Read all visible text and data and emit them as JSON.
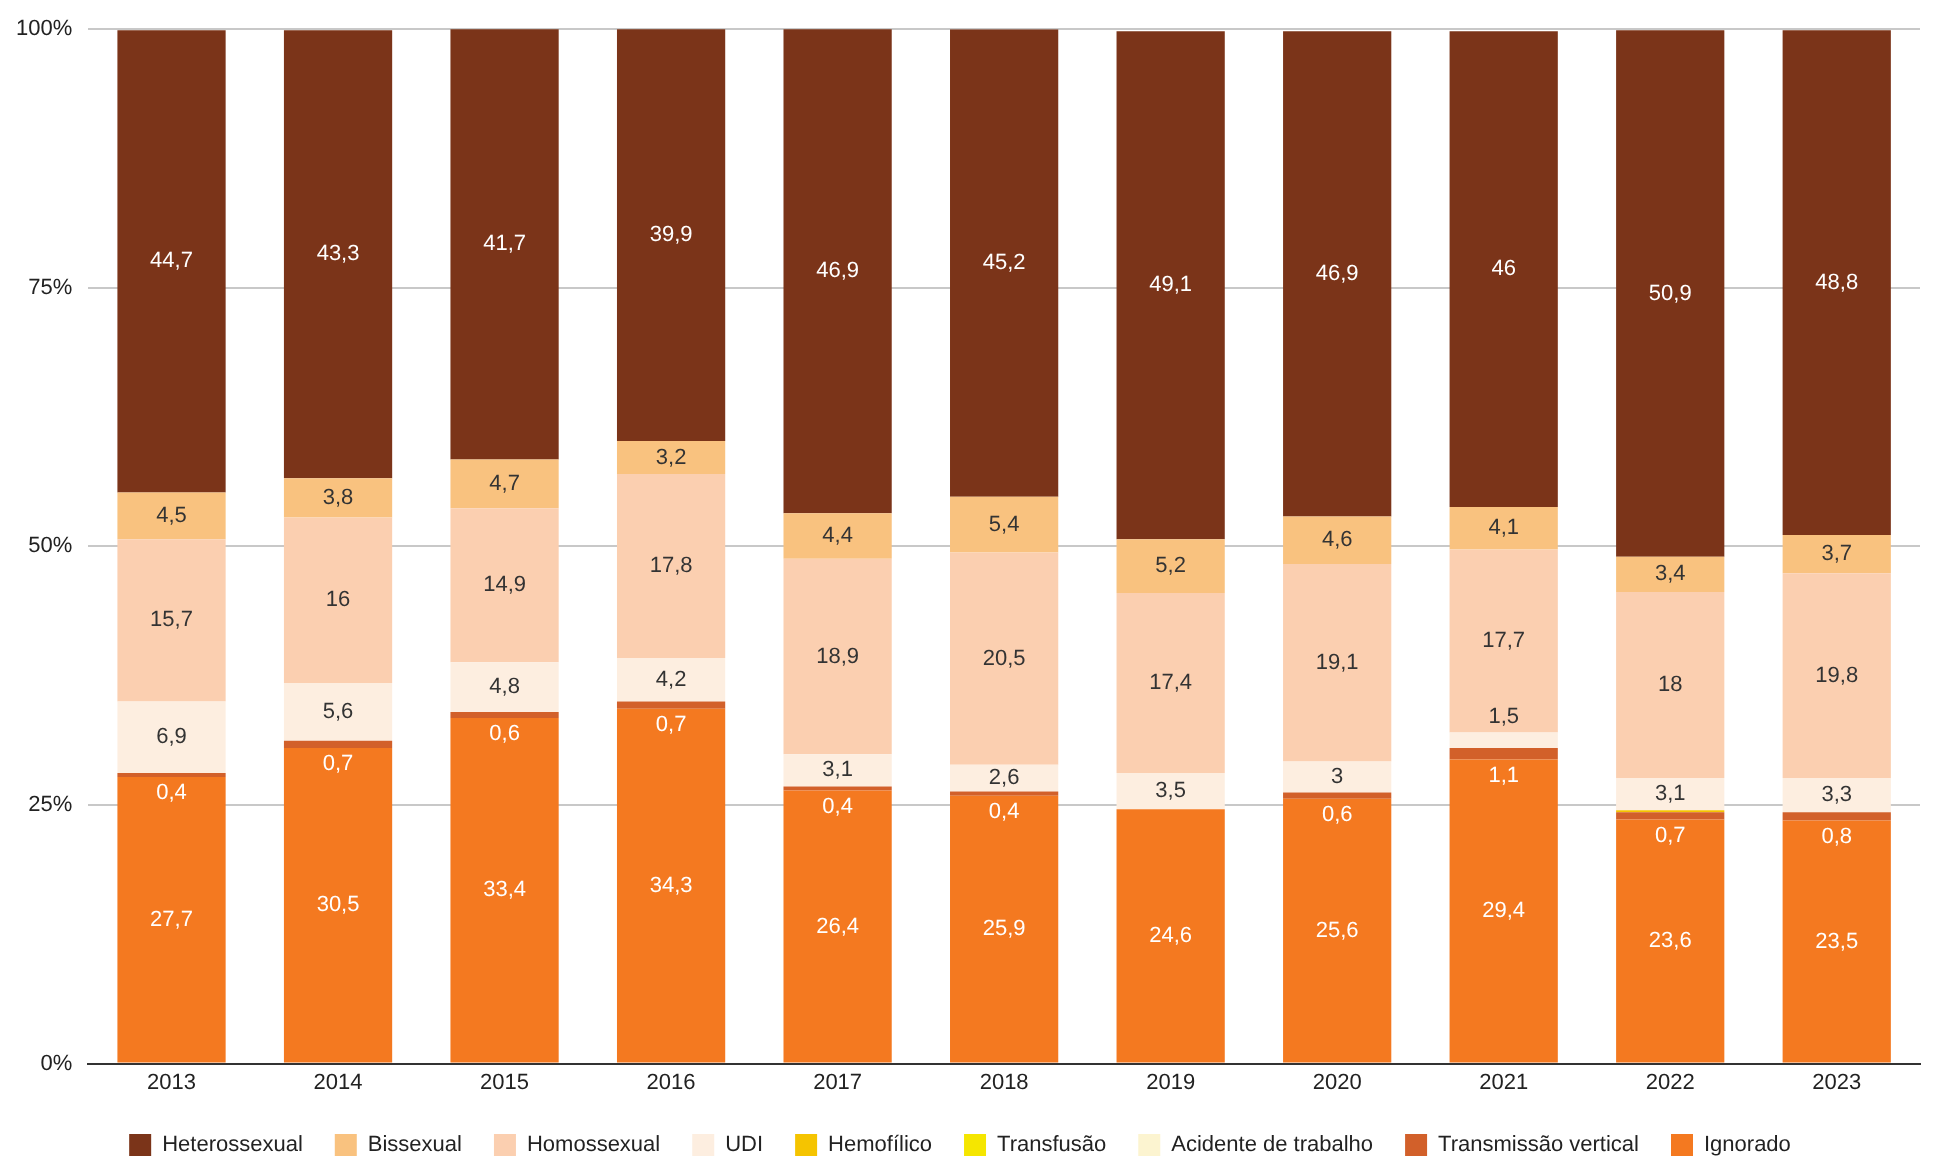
{
  "chart_data": {
    "type": "bar",
    "stacked": true,
    "categories": [
      "2013",
      "2014",
      "2015",
      "2016",
      "2017",
      "2018",
      "2019",
      "2020",
      "2021",
      "2022",
      "2023"
    ],
    "ylim": [
      0,
      100
    ],
    "yticks": [
      {
        "value": 0,
        "label": "0%"
      },
      {
        "value": 25,
        "label": "25%"
      },
      {
        "value": 50,
        "label": "50%"
      },
      {
        "value": 75,
        "label": "75%"
      },
      {
        "value": 100,
        "label": "100%"
      }
    ],
    "grid": "y",
    "legend": "bottom",
    "series": [
      {
        "name": "Ignorado",
        "color": "#f47920",
        "values": [
          27.7,
          30.5,
          33.4,
          34.3,
          26.4,
          25.9,
          24.6,
          25.6,
          29.4,
          23.6,
          23.5
        ],
        "value_labels": [
          "27,7",
          "30,5",
          "33,4",
          "34,3",
          "26,4",
          "25,9",
          "24,6",
          "25,6",
          "29,4",
          "23,6",
          "23,5"
        ]
      },
      {
        "name": "Transmissão vertical",
        "color": "#d2602a",
        "values": [
          0.4,
          0.7,
          0.6,
          0.7,
          0.4,
          0.4,
          null,
          0.6,
          1.1,
          0.7,
          0.8
        ],
        "value_labels": [
          "0,4",
          "0,7",
          "0,6",
          "0,7",
          "0,4",
          "0,4",
          null,
          "0,6",
          "1,1",
          "0,7",
          "0,8"
        ]
      },
      {
        "name": "Acidente de trabalho",
        "color": "#fcf4d0",
        "values": [
          null,
          null,
          null,
          null,
          null,
          null,
          null,
          null,
          null,
          null,
          null
        ]
      },
      {
        "name": "Transfusão",
        "color": "#f5e600",
        "values": [
          null,
          null,
          null,
          null,
          null,
          null,
          null,
          null,
          null,
          null,
          null
        ]
      },
      {
        "name": "Hemofílico",
        "color": "#f5c400",
        "values": [
          null,
          null,
          null,
          null,
          null,
          null,
          null,
          null,
          null,
          0.2,
          null
        ],
        "value_labels": [
          null,
          null,
          null,
          null,
          null,
          null,
          null,
          null,
          null,
          null,
          null
        ]
      },
      {
        "name": "UDI",
        "color": "#fdeee0",
        "values": [
          6.9,
          5.6,
          4.8,
          4.2,
          3.1,
          2.6,
          3.5,
          3,
          1.5,
          3.1,
          3.3
        ],
        "value_labels": [
          "6,9",
          "5,6",
          "4,8",
          "4,2",
          "3,1",
          "2,6",
          "3,5",
          "3",
          "1,5",
          "3,1",
          "3,3"
        ]
      },
      {
        "name": "Homossexual",
        "color": "#fbcfb0",
        "values": [
          15.7,
          16,
          14.9,
          17.8,
          18.9,
          20.5,
          17.4,
          19.1,
          17.7,
          18,
          19.8
        ],
        "value_labels": [
          "15,7",
          "16",
          "14,9",
          "17,8",
          "18,9",
          "20,5",
          "17,4",
          "19,1",
          "17,7",
          "18",
          "19,8"
        ]
      },
      {
        "name": "Bissexual",
        "color": "#f9c27f",
        "values": [
          4.5,
          3.8,
          4.7,
          3.2,
          4.4,
          5.4,
          5.2,
          4.6,
          4.1,
          3.4,
          3.7
        ],
        "value_labels": [
          "4,5",
          "3,8",
          "4,7",
          "3,2",
          "4,4",
          "5,4",
          "5,2",
          "4,6",
          "4,1",
          "3,4",
          "3,7"
        ]
      },
      {
        "name": "Heterossexual",
        "color": "#7b3419",
        "values": [
          44.7,
          43.3,
          41.7,
          39.9,
          46.9,
          45.2,
          49.1,
          46.9,
          46,
          50.9,
          48.8
        ],
        "value_labels": [
          "44,7",
          "43,3",
          "41,7",
          "39,9",
          "46,9",
          "45,2",
          "49,1",
          "46,9",
          "46",
          "50,9",
          "48,8"
        ]
      }
    ]
  }
}
